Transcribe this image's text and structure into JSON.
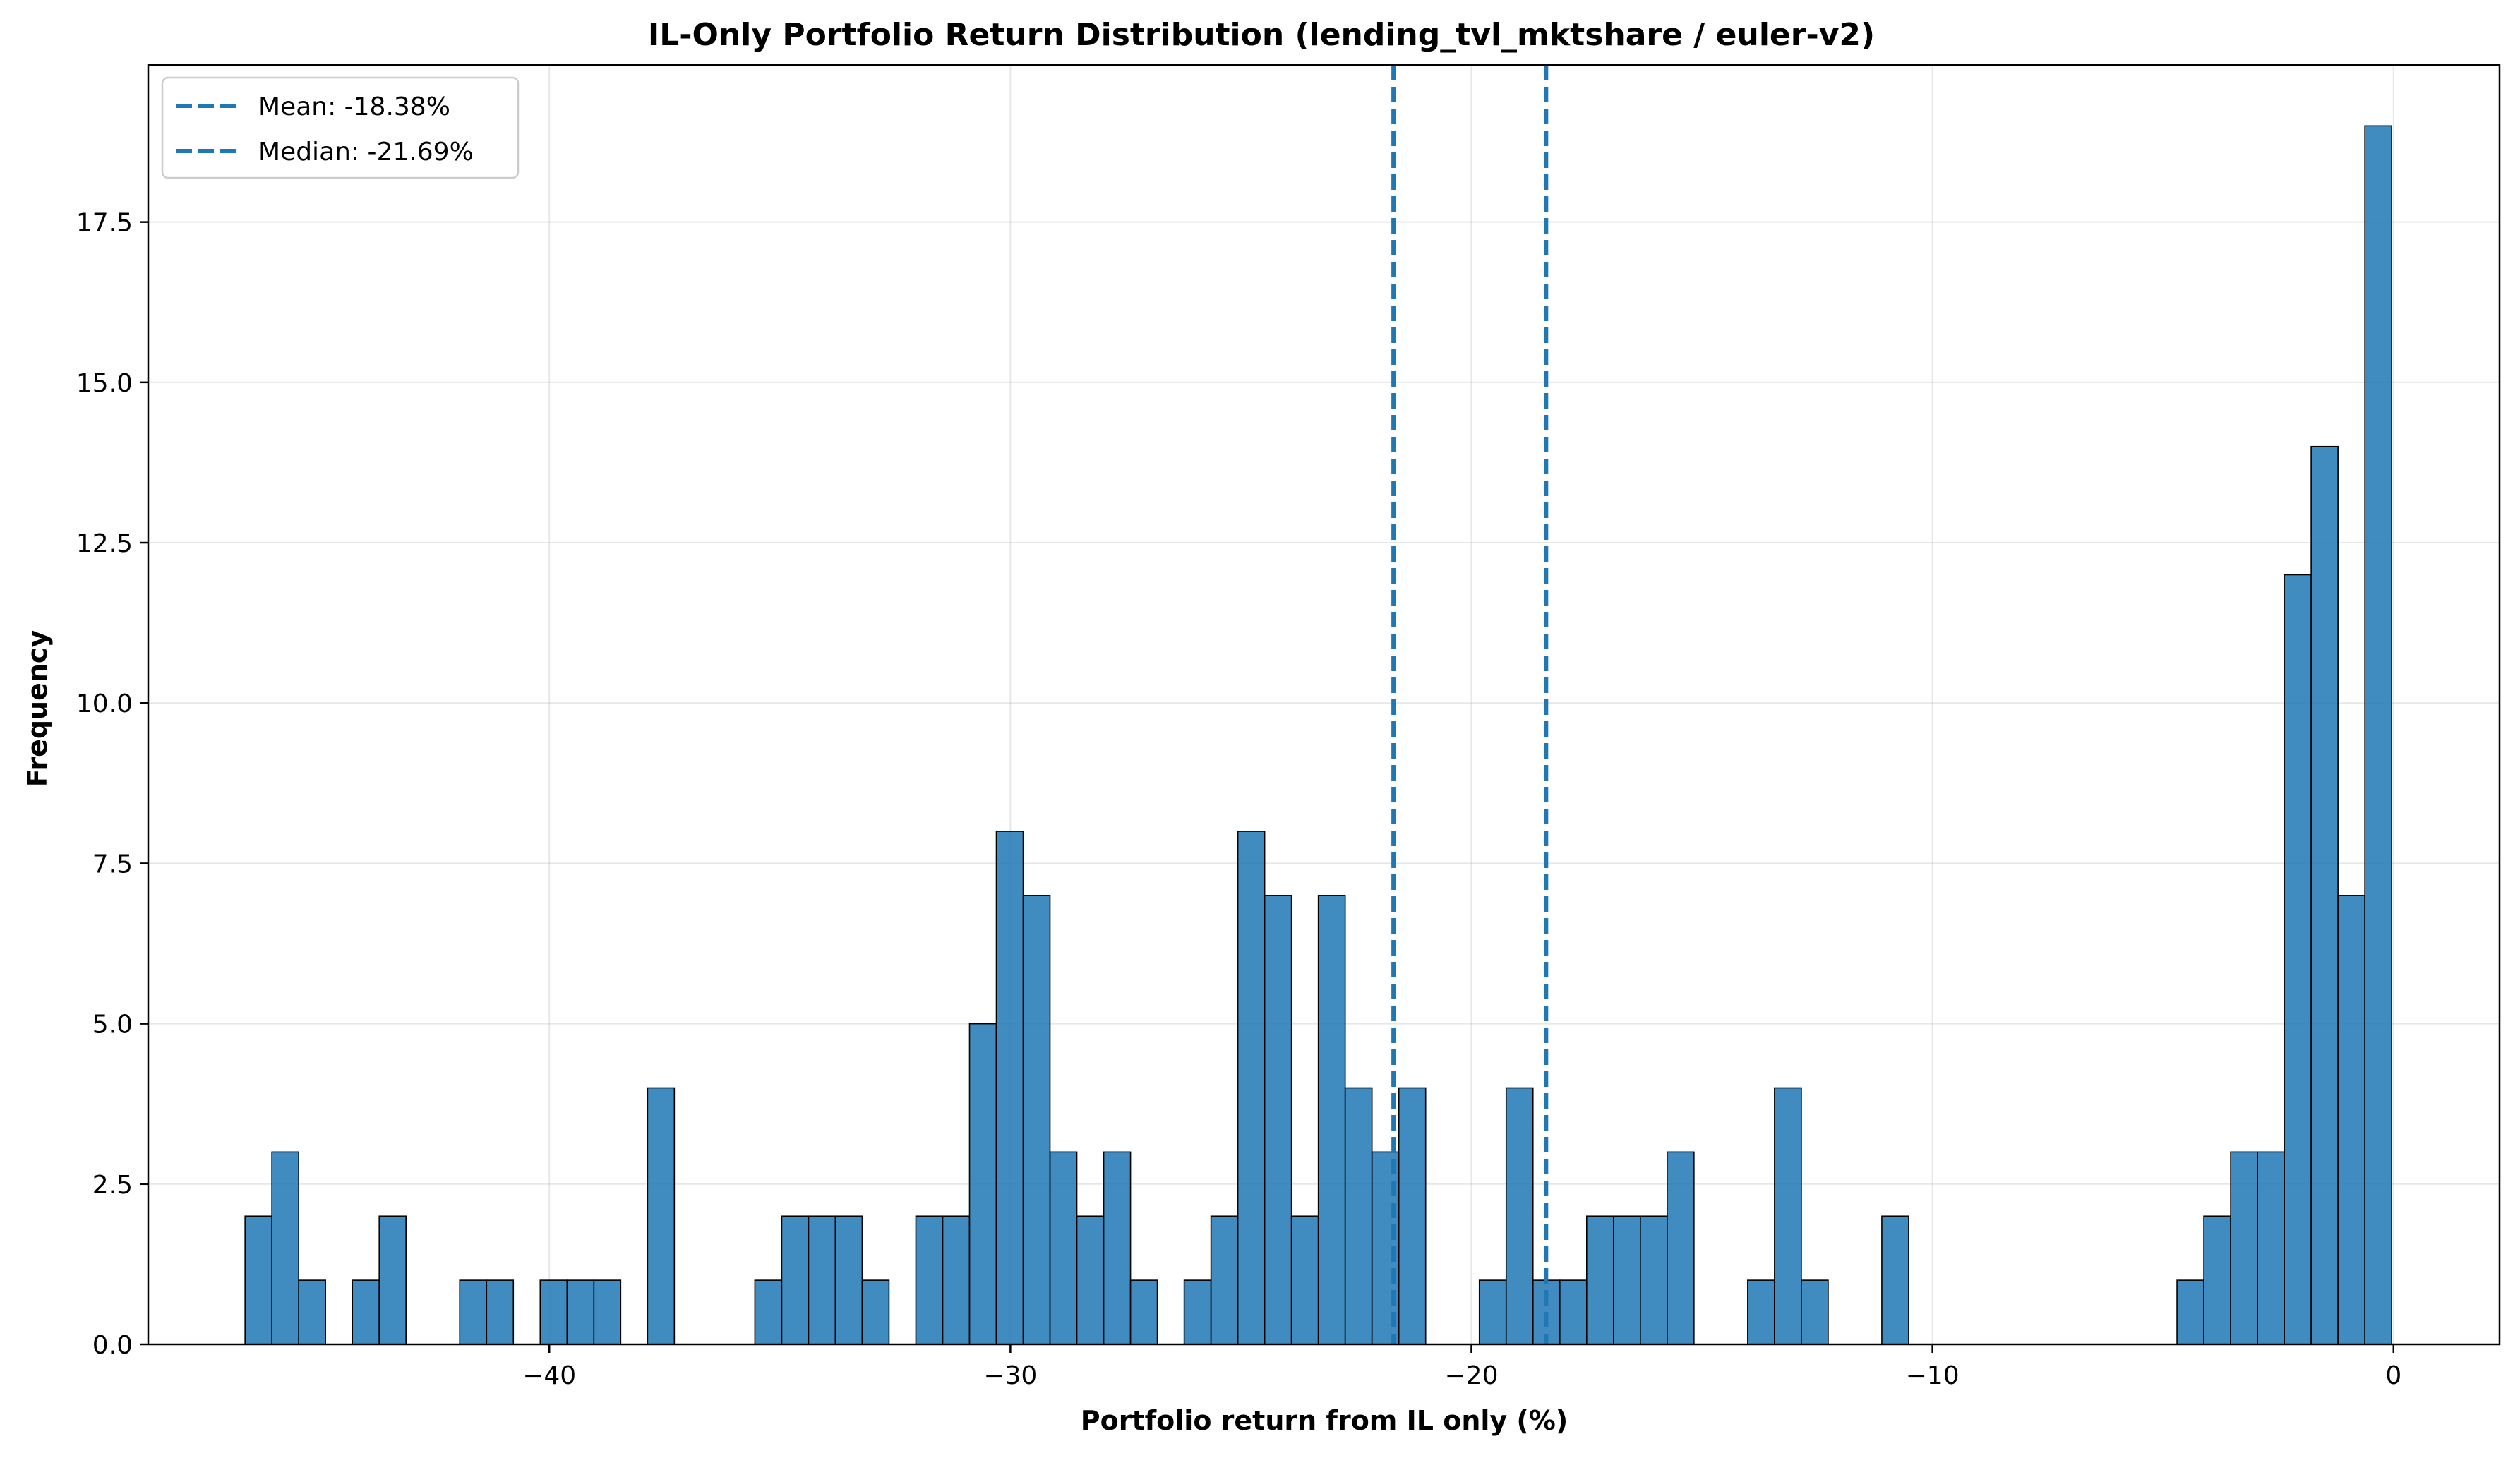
{
  "chart_data": {
    "type": "bar",
    "title": "IL-Only Portfolio Return Distribution (lending_tvl_mktshare / euler-v2)",
    "xlabel": "Portfolio return from IL only (%)",
    "ylabel": "Frequency",
    "xlim": [
      -48.7,
      2.3
    ],
    "ylim": [
      0,
      19.95
    ],
    "x_ticks": [
      -40,
      -30,
      -20,
      -10,
      0
    ],
    "x_tick_labels": [
      "−40",
      "−30",
      "−20",
      "−10",
      "0"
    ],
    "y_ticks": [
      0,
      2.5,
      5,
      7.5,
      10,
      12.5,
      15,
      17.5
    ],
    "y_tick_labels": [
      "0.0",
      "2.5",
      "5.0",
      "7.5",
      "10.0",
      "12.5",
      "15.0",
      "17.5"
    ],
    "grid": true,
    "legend_position": "top-left",
    "bin_start": -46.6,
    "bin_width": 0.582,
    "bin_counts": [
      2,
      3,
      1,
      0,
      1,
      2,
      0,
      0,
      1,
      1,
      0,
      1,
      1,
      1,
      0,
      4,
      0,
      0,
      0,
      1,
      2,
      2,
      2,
      1,
      0,
      2,
      2,
      5,
      8,
      7,
      3,
      2,
      3,
      1,
      0,
      1,
      2,
      8,
      7,
      2,
      7,
      4,
      3,
      4,
      0,
      0,
      1,
      4,
      1,
      1,
      2,
      2,
      2,
      3,
      0,
      0,
      1,
      4,
      1,
      0,
      0,
      2,
      0,
      0,
      0,
      0,
      0,
      0,
      0,
      0,
      0,
      0,
      1,
      2,
      3,
      3,
      12,
      14,
      7,
      19
    ],
    "bar_color": "#1f77b4",
    "reference_lines": [
      {
        "label": "Mean: -18.38%",
        "value": -18.38,
        "color": "#1f77b4"
      },
      {
        "label": "Median: -21.69%",
        "value": -21.69,
        "color": "#1f77b4"
      }
    ]
  }
}
